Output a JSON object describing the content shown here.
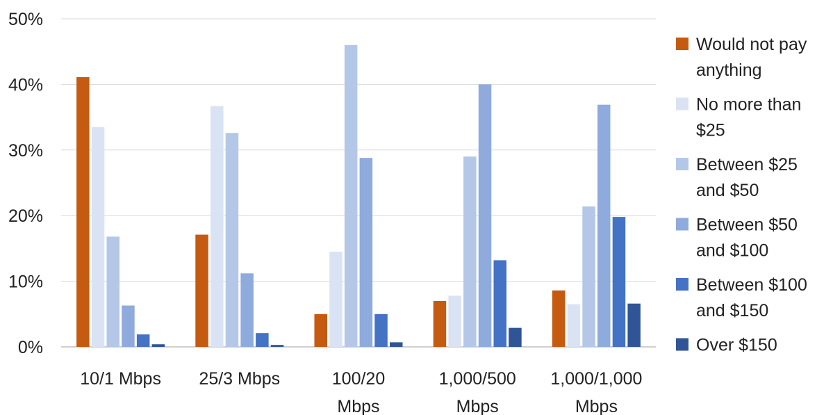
{
  "chart_data": {
    "type": "bar",
    "title": "",
    "xlabel": "",
    "ylabel": "",
    "ylim": [
      0,
      50
    ],
    "y_ticks": [
      "0%",
      "10%",
      "20%",
      "30%",
      "40%",
      "50%"
    ],
    "y_tick_values": [
      0,
      10,
      20,
      30,
      40,
      50
    ],
    "grid": true,
    "legend_position": "right",
    "categories": [
      [
        "10/1 Mbps"
      ],
      [
        "25/3 Mbps"
      ],
      [
        "100/20",
        "Mbps"
      ],
      [
        "1,000/500",
        "Mbps"
      ],
      [
        "1,000/1,000",
        "Mbps"
      ]
    ],
    "series": [
      {
        "name": [
          "Would not pay",
          "anything"
        ],
        "color": "#C55A11",
        "values": [
          41.1,
          17.1,
          5.0,
          7.0,
          8.6
        ]
      },
      {
        "name": [
          "No more than",
          "$25"
        ],
        "color": "#DAE3F3",
        "values": [
          33.5,
          36.7,
          14.5,
          7.8,
          6.5
        ]
      },
      {
        "name": [
          "Between $25",
          "and $50"
        ],
        "color": "#B4C7E7",
        "values": [
          16.8,
          32.6,
          46.0,
          29.0,
          21.4
        ]
      },
      {
        "name": [
          "Between $50",
          "and $100"
        ],
        "color": "#8FAADC",
        "values": [
          6.3,
          11.2,
          28.8,
          40.0,
          36.9
        ]
      },
      {
        "name": [
          "Between $100",
          "and $150"
        ],
        "color": "#4472C4",
        "values": [
          1.9,
          2.1,
          5.0,
          13.2,
          19.8
        ]
      },
      {
        "name": [
          "Over $150"
        ],
        "color": "#2F5597",
        "values": [
          0.4,
          0.3,
          0.7,
          2.9,
          6.6
        ]
      }
    ]
  }
}
